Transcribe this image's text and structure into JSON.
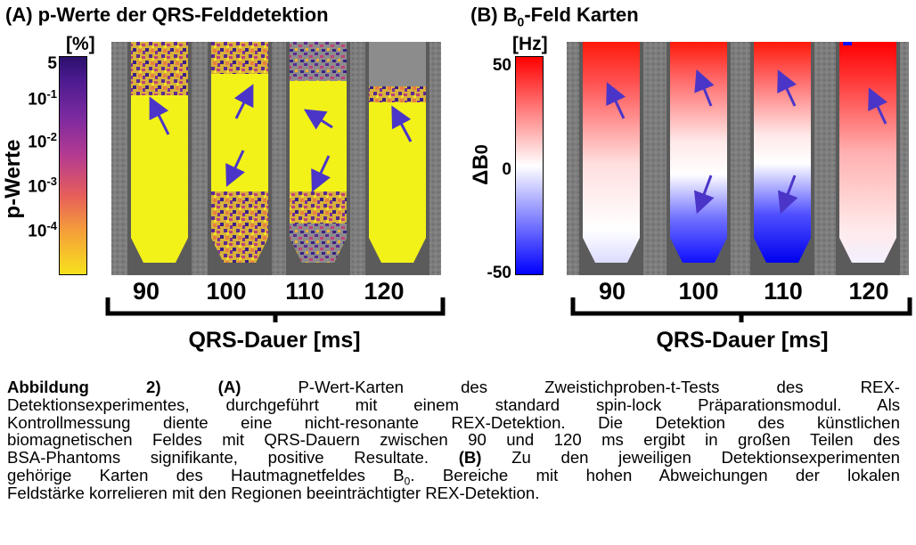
{
  "panel_a": {
    "title": "(A) p-Werte der QRS-Felddetektion",
    "colorbar": {
      "unit": "[%]",
      "ticks": [
        "5",
        "10-1",
        "10-2",
        "10-3",
        "10-4"
      ],
      "label": "p-Werte"
    },
    "durations": [
      "90",
      "100",
      "110",
      "120"
    ],
    "axis_title": "QRS-Dauer [ms]"
  },
  "panel_b": {
    "title_main": "(B) B",
    "title_sub": "0",
    "title_rest": "-Feld Karten",
    "colorbar": {
      "unit": "[Hz]",
      "ticks": [
        "50",
        "0",
        "-50"
      ],
      "label": "ΔB0"
    },
    "durations": [
      "90",
      "100",
      "110",
      "120"
    ],
    "axis_title": "QRS-Dauer [ms]"
  },
  "colors": {
    "yellow": "#f2f219",
    "purple": "#5a2b90",
    "red": "#ff1a0a",
    "blue": "#1010ff",
    "arrow": "#4b35c8",
    "frame_gray": "#7c7c7c"
  },
  "caption": {
    "l1_a": "Abbildung",
    "l1_b": "2)",
    "l1_c": "(A)",
    "l1_d": "P-Wert-Karten des Zweistichproben-t-Tests des REX-",
    "l2": "Detektionsexperimentes, durchgeführt mit einem standard spin-lock Präparationsmodul. Als",
    "l3": "Kontrollmessung diente eine nicht-resonante REX-Detektion. Die Detektion des künstlichen",
    "l4": "biomagnetischen Feldes mit QRS-Dauern zwischen 90 und 120 ms ergibt in großen Teilen des",
    "l5_a": "BSA-Phantoms signifikante, positive Resultate.",
    "l5_b": "(B)",
    "l5_c": "Zu den jeweiligen Detektionsexperimenten",
    "l6_a": "gehörige Karten des Hautmagnetfeldes B",
    "l6_sub": "0",
    "l6_b": ". Bereiche mit hohen Abweichungen der lokalen",
    "l7": "Feldstärke korrelieren mit den Regionen beeinträchtigter REX-Detektion."
  }
}
